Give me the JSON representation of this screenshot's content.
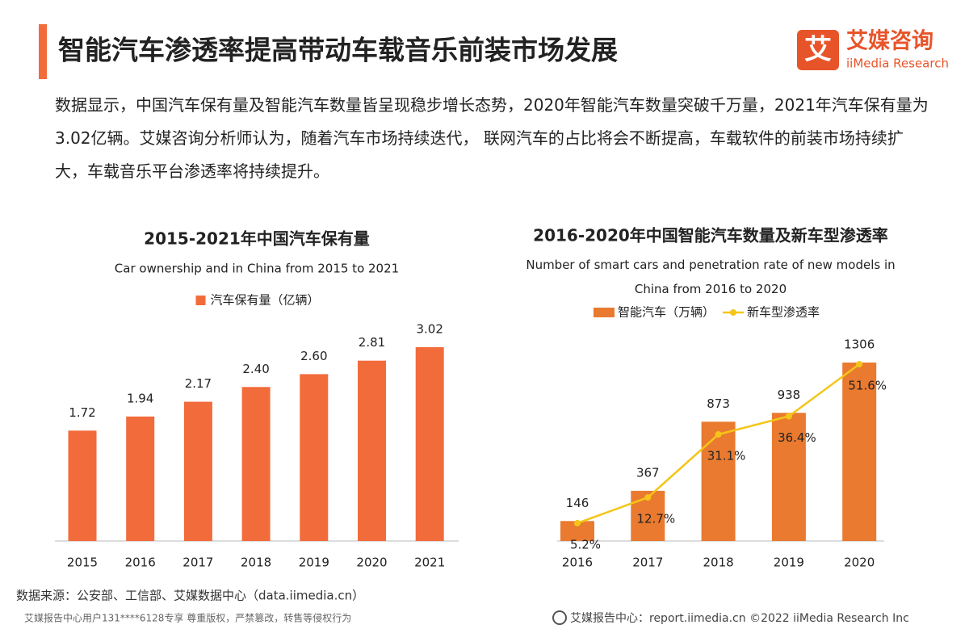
{
  "header": {
    "title": "智能汽车渗透率提高带动车载音乐前装市场发展",
    "logo_icon": "艾",
    "logo_cn": "艾媒咨询",
    "logo_en": "iiMedia Research"
  },
  "intro": "数据显示，中国汽车保有量及智能汽车数量皆呈现稳步增长态势，2020年智能汽车数量突破千万量，2021年汽车保有量为3.02亿辆。艾媒咨询分析师认为，随着汽车市场持续迭代， 联网汽车的占比将会不断提高，车载软件的前装市场持续扩大，车载音乐平台渗透率将持续提升。",
  "chart_data": [
    {
      "type": "bar",
      "title": "2015-2021年中国汽车保有量",
      "subtitle": "Car ownership and in China from 2015 to 2021",
      "categories": [
        "2015",
        "2016",
        "2017",
        "2018",
        "2019",
        "2020",
        "2021"
      ],
      "series": [
        {
          "name": "汽车保有量（亿辆）",
          "color": "#f26b3a",
          "values": [
            1.72,
            1.94,
            2.17,
            2.4,
            2.6,
            2.81,
            3.02
          ],
          "value_labels": [
            "1.72",
            "1.94",
            "2.17",
            "2.40",
            "2.60",
            "2.81",
            "3.02"
          ]
        }
      ]
    },
    {
      "type": "combo",
      "title": "2016-2020年中国智能汽车数量及新车型渗透率",
      "subtitle": "Number of smart cars and penetration rate of new models in China from 2016 to 2020",
      "categories": [
        "2016",
        "2017",
        "2018",
        "2019",
        "2020"
      ],
      "series": [
        {
          "name": "智能汽车（万辆）",
          "type": "bar",
          "color": "#e97a2f",
          "values": [
            146,
            367,
            873,
            938,
            1306
          ]
        },
        {
          "name": "新车型渗透率",
          "type": "line",
          "axis": "y2",
          "color": "#f5c518",
          "values": [
            5.2,
            12.7,
            31.1,
            36.4,
            51.6
          ],
          "value_labels": [
            "5.2%",
            "12.7%",
            "31.1%",
            "36.4%",
            "51.6%"
          ]
        }
      ]
    }
  ],
  "source": "数据来源：公安部、工信部、艾媒数据中心（data.iimedia.cn）",
  "footer": {
    "notice": "艾媒报告中心用户131****6128专享 尊重版权，严禁篡改，转售等侵权行为",
    "site": "艾媒报告中心：report.iimedia.cn  ©2022  iiMedia Research  Inc"
  }
}
